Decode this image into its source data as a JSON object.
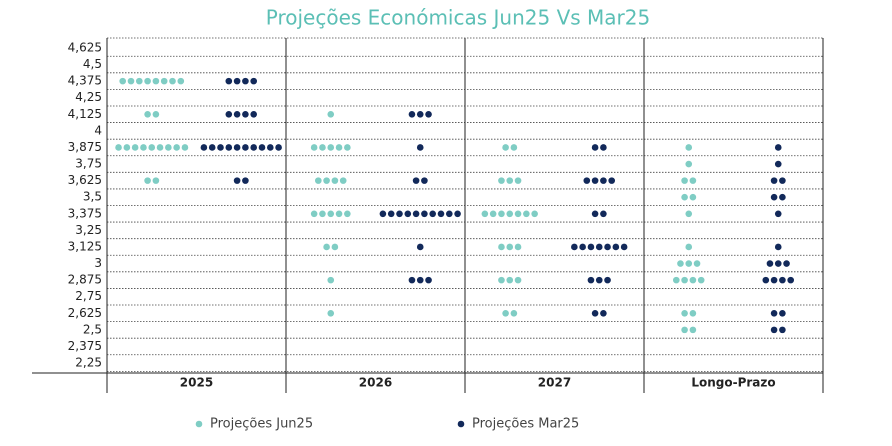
{
  "chart_data": {
    "type": "dot",
    "title": "Projeções Económicas Jun25 Vs Mar25",
    "categories": [
      "2025",
      "2026",
      "2027",
      "Longo-Prazo"
    ],
    "ylim": [
      2.175,
      4.7
    ],
    "yticks": [
      {
        "value": 4.625,
        "label": "4,625"
      },
      {
        "value": 4.5,
        "label": "4,5"
      },
      {
        "value": 4.375,
        "label": "4,375"
      },
      {
        "value": 4.25,
        "label": "4,25"
      },
      {
        "value": 4.125,
        "label": "4,125"
      },
      4,
      {
        "value": 3.875,
        "label": "3,875"
      },
      {
        "value": 3.75,
        "label": "3,75"
      },
      {
        "value": 3.625,
        "label": "3,625"
      },
      {
        "value": 3.5,
        "label": "3,5"
      },
      {
        "value": 3.375,
        "label": "3,375"
      },
      {
        "value": 3.25,
        "label": "3,25"
      },
      {
        "value": 3.125,
        "label": "3,125"
      },
      3,
      {
        "value": 2.875,
        "label": "2,875"
      },
      {
        "value": 2.75,
        "label": "2,75"
      },
      {
        "value": 2.625,
        "label": "2,625"
      },
      {
        "value": 2.5,
        "label": "2,5"
      },
      {
        "value": 2.375,
        "label": "2,375"
      },
      {
        "value": 2.25,
        "label": "2,25"
      }
    ],
    "grid": true,
    "series": [
      {
        "name": "Projeções Jun25",
        "color": "#7fcdc4",
        "values": [
          [
            4.375,
            4.375,
            4.375,
            4.375,
            4.375,
            4.375,
            4.375,
            4.375,
            4.125,
            4.125,
            3.875,
            3.875,
            3.875,
            3.875,
            3.875,
            3.875,
            3.875,
            3.875,
            3.875,
            3.625,
            3.625
          ],
          [
            4.125,
            3.875,
            3.875,
            3.875,
            3.875,
            3.875,
            3.625,
            3.625,
            3.625,
            3.625,
            3.375,
            3.375,
            3.375,
            3.375,
            3.375,
            3.125,
            3.125,
            2.875,
            2.625
          ],
          [
            3.875,
            3.875,
            3.625,
            3.625,
            3.625,
            3.375,
            3.375,
            3.375,
            3.375,
            3.375,
            3.375,
            3.375,
            3.125,
            3.125,
            3.125,
            2.875,
            2.875,
            2.875,
            2.625,
            2.625
          ],
          [
            3.875,
            3.75,
            3.625,
            3.625,
            3.5,
            3.5,
            3.375,
            3.125,
            3,
            3,
            3,
            2.875,
            2.875,
            2.875,
            2.875,
            2.625,
            2.625,
            2.5,
            2.5
          ]
        ]
      },
      {
        "name": "Projeções Mar25",
        "color": "#12295a",
        "values": [
          [
            4.375,
            4.375,
            4.375,
            4.375,
            4.125,
            4.125,
            4.125,
            4.125,
            3.875,
            3.875,
            3.875,
            3.875,
            3.875,
            3.875,
            3.875,
            3.875,
            3.875,
            3.875,
            3.625,
            3.625
          ],
          [
            4.125,
            4.125,
            4.125,
            3.875,
            3.625,
            3.625,
            3.375,
            3.375,
            3.375,
            3.375,
            3.375,
            3.375,
            3.375,
            3.375,
            3.375,
            3.375,
            3.125,
            2.875,
            2.875,
            2.875
          ],
          [
            3.875,
            3.875,
            3.625,
            3.625,
            3.625,
            3.625,
            3.375,
            3.375,
            3.125,
            3.125,
            3.125,
            3.125,
            3.125,
            3.125,
            3.125,
            2.875,
            2.875,
            2.875,
            2.625,
            2.625
          ],
          [
            3.875,
            3.75,
            3.625,
            3.625,
            3.5,
            3.5,
            3.375,
            3.125,
            3,
            3,
            3,
            2.875,
            2.875,
            2.875,
            2.875,
            2.625,
            2.625,
            2.5,
            2.5
          ]
        ]
      }
    ]
  }
}
